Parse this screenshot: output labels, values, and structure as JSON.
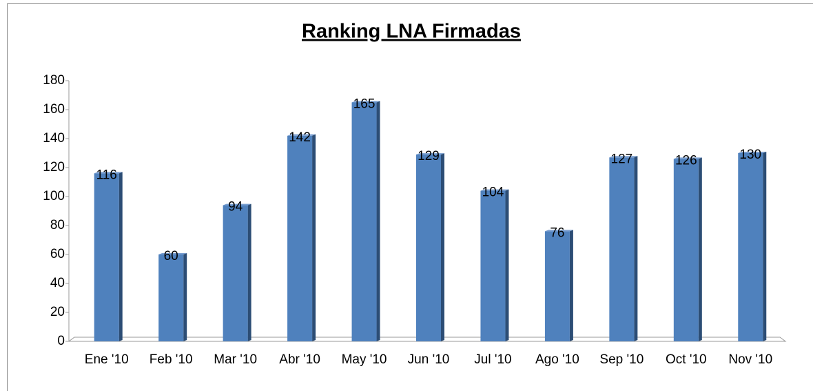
{
  "chart_data": {
    "type": "bar",
    "title": "Ranking LNA Firmadas",
    "categories": [
      "Ene '10",
      "Feb '10",
      "Mar '10",
      "Abr '10",
      "May '10",
      "Jun '10",
      "Jul '10",
      "Ago '10",
      "Sep '10",
      "Oct '10",
      "Nov '10"
    ],
    "values": [
      116,
      60,
      94,
      142,
      165,
      129,
      104,
      76,
      127,
      126,
      130
    ],
    "color": "#4f81bd",
    "ylim": [
      0,
      180
    ],
    "yticks": [
      0,
      20,
      40,
      60,
      80,
      100,
      120,
      140,
      160,
      180
    ],
    "grid": false
  }
}
